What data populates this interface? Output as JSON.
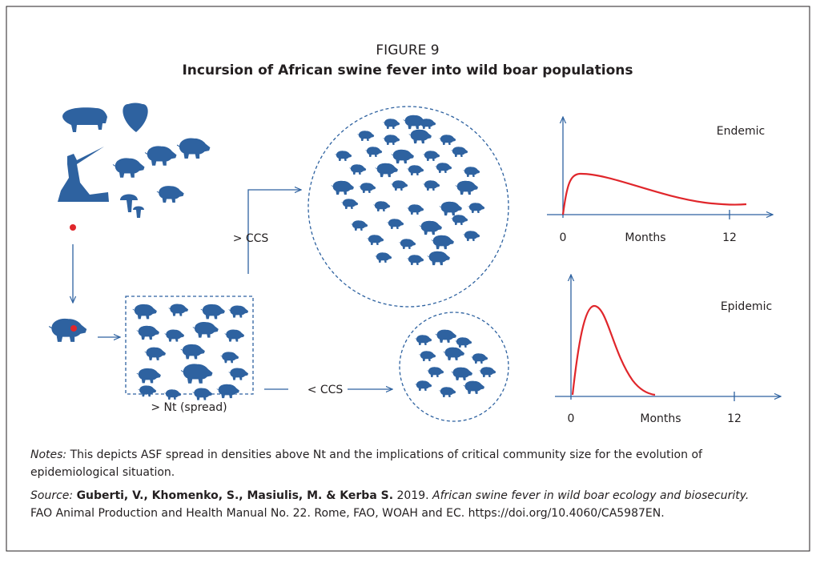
{
  "figure": {
    "label": "FIGURE 9",
    "title": "Incursion of African swine fever into wild boar populations"
  },
  "labels": {
    "above_ccs": "> CCS",
    "below_ccs": "< CCS",
    "nt_spread": "> Nt (spread)"
  },
  "charts": [
    {
      "title": "Endemic",
      "x_start": "0",
      "x_label": "Months",
      "x_end": "12"
    },
    {
      "title": "Epidemic",
      "x_start": "0",
      "x_label": "Months",
      "x_end": "12"
    }
  ],
  "notes": {
    "label": "Notes:",
    "text": "This depicts ASF spread in densities above Nt and the implications of critical community size for the evolution of",
    "text2": "epidemiological situation."
  },
  "source": {
    "label": "Source:",
    "authors": "Guberti, V., Khomenko, S., Masiulis, M. & Kerba S.",
    "year": "2019.",
    "title": "African swine fever in wild boar ecology and biosecurity.",
    "rest": "FAO Animal Production and Health Manual No. 22. Rome, FAO, WOAH and EC. https://doi.org/10.4060/CA5987EN."
  }
}
